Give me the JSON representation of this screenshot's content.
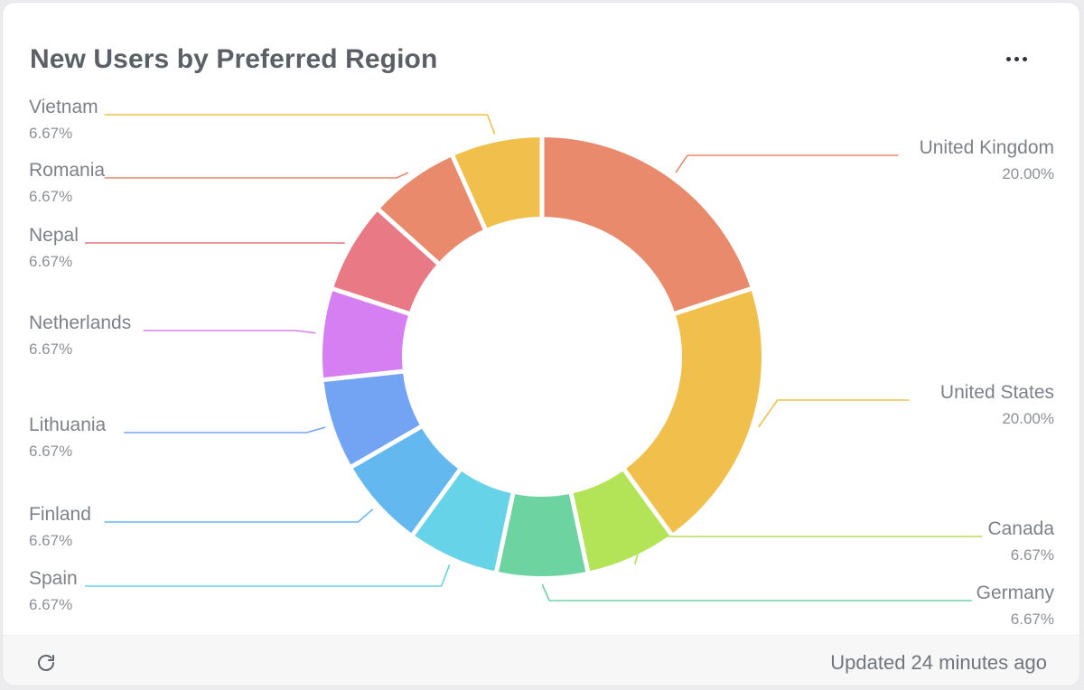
{
  "card": {
    "title": "New Users by Preferred Region",
    "menu_icon": "more-horizontal-icon",
    "footer": {
      "refresh_icon": "refresh-icon",
      "updated_text": "Updated 24 minutes ago"
    }
  },
  "chart_data": {
    "type": "pie",
    "donut": true,
    "title": "New Users by Preferred Region",
    "labels_position": "outside-with-leader-lines",
    "slices": [
      {
        "label": "United Kingdom",
        "value": 20.0,
        "display": "20.00%",
        "color": "#E88A6B"
      },
      {
        "label": "United States",
        "value": 20.0,
        "display": "20.00%",
        "color": "#F1C04C"
      },
      {
        "label": "Canada",
        "value": 6.67,
        "display": "6.67%",
        "color": "#B3E457"
      },
      {
        "label": "Germany",
        "value": 6.67,
        "display": "6.67%",
        "color": "#6DD3A1"
      },
      {
        "label": "Spain",
        "value": 6.67,
        "display": "6.67%",
        "color": "#66D3E8"
      },
      {
        "label": "Finland",
        "value": 6.67,
        "display": "6.67%",
        "color": "#63B8F0"
      },
      {
        "label": "Lithuania",
        "value": 6.67,
        "display": "6.67%",
        "color": "#72A4F3"
      },
      {
        "label": "Netherlands",
        "value": 6.67,
        "display": "6.67%",
        "color": "#D67FF2"
      },
      {
        "label": "Nepal",
        "value": 6.67,
        "display": "6.67%",
        "color": "#E97984"
      },
      {
        "label": "Romania",
        "value": 6.67,
        "display": "6.67%",
        "color": "#E88A6B"
      },
      {
        "label": "Vietnam",
        "value": 6.67,
        "display": "6.67%",
        "color": "#F1C04C"
      }
    ]
  }
}
